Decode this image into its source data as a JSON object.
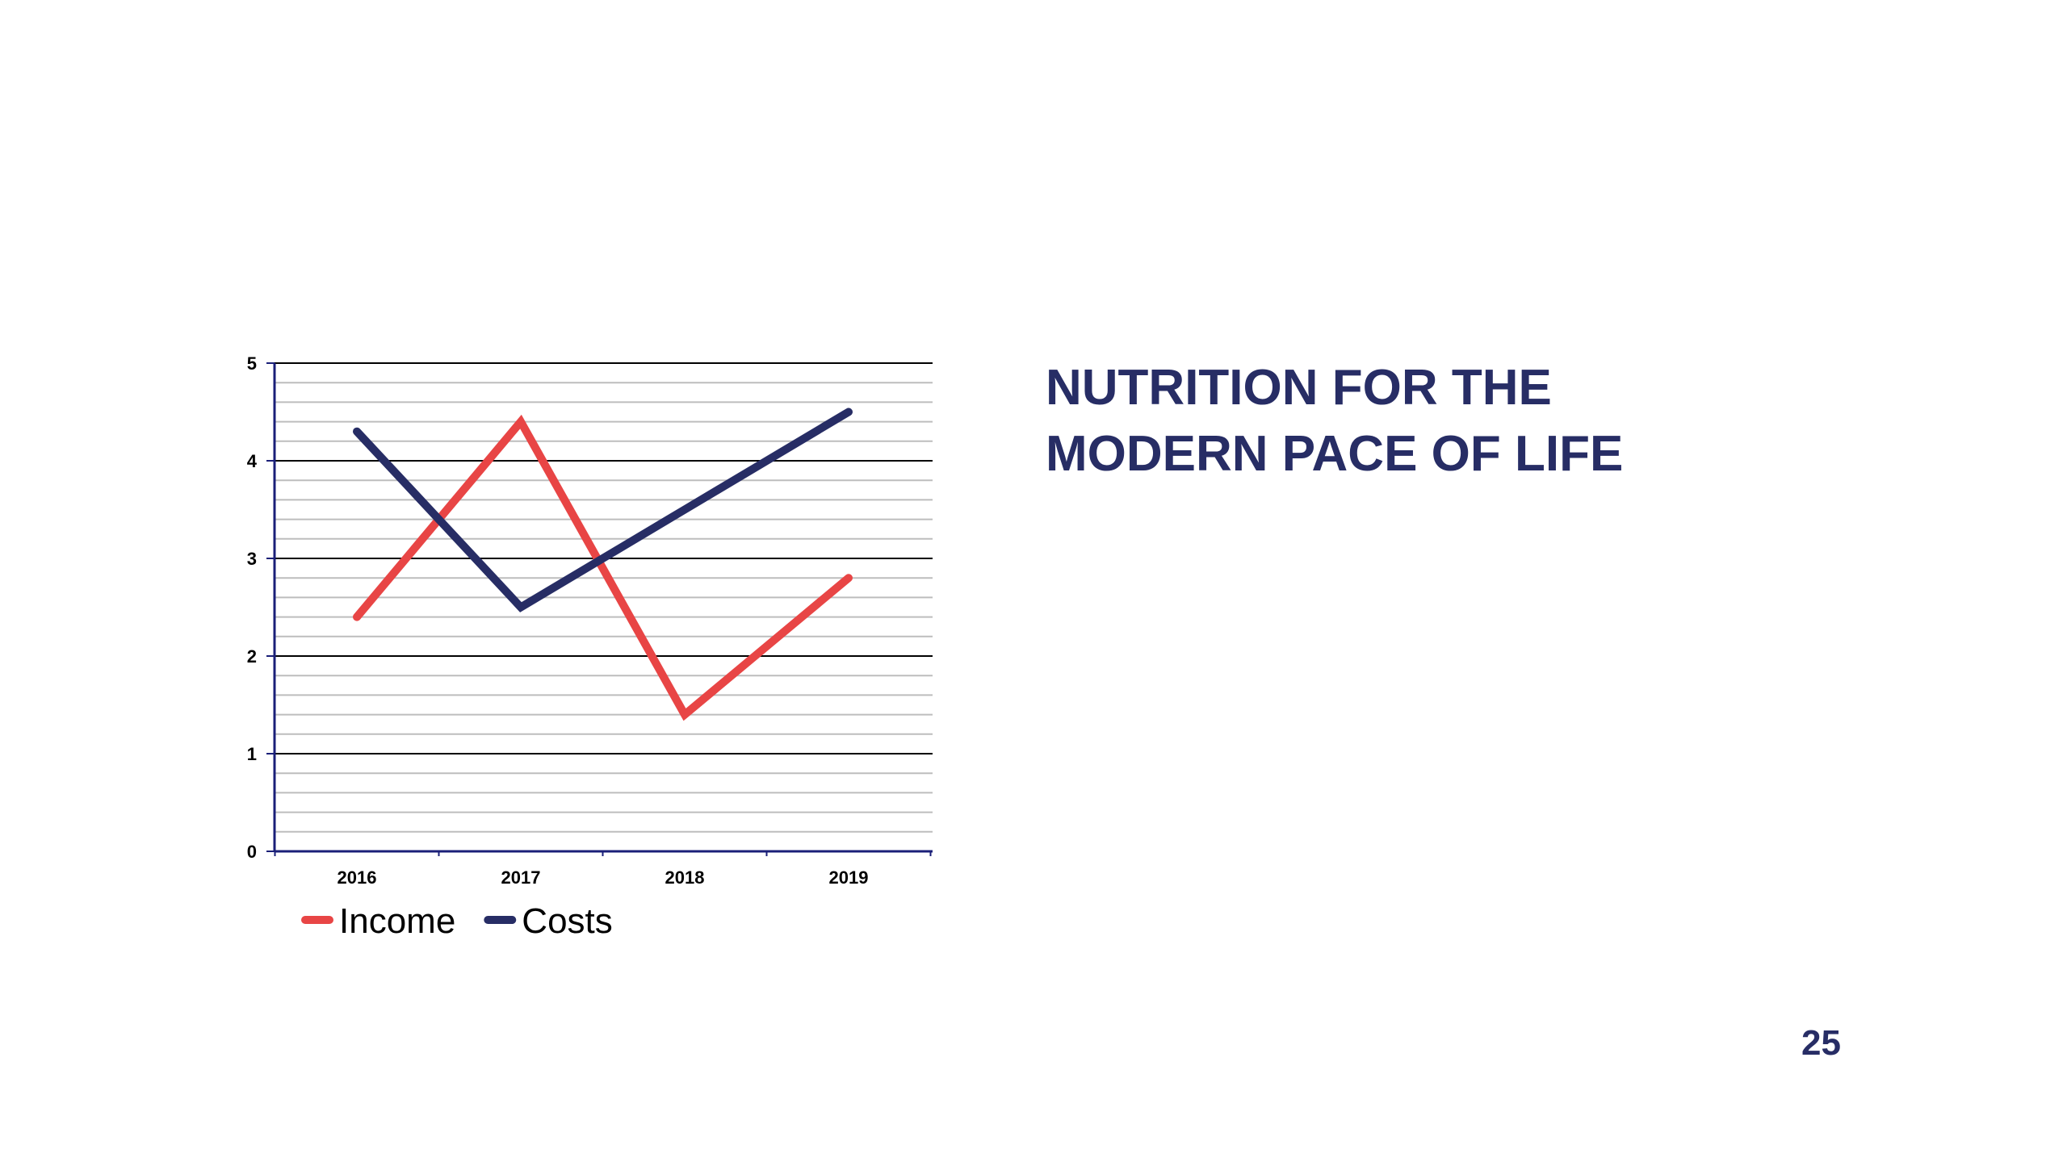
{
  "slide": {
    "title_line1": "NUTRITION FOR THE",
    "title_line2": "MODERN PACE OF LIFE",
    "page_number": "25",
    "title_color": "#272d65"
  },
  "chart_data": {
    "type": "line",
    "categories": [
      "2016",
      "2017",
      "2018",
      "2019"
    ],
    "series": [
      {
        "name": "Income",
        "values": [
          2.4,
          4.4,
          1.4,
          2.8
        ],
        "color": "#e84545"
      },
      {
        "name": "Costs",
        "values": [
          4.3,
          2.5,
          3.5,
          4.5
        ],
        "color": "#272d65"
      }
    ],
    "ylim": [
      0,
      5
    ],
    "yticks": [
      "0",
      "1",
      "2",
      "3",
      "4",
      "5"
    ],
    "minor_gridlines_per_unit": 5,
    "grid": true,
    "legend": "bottom-left",
    "axis_color": "#1a1f78",
    "major_grid_color": "#000000",
    "minor_grid_color": "#bdbdbd"
  }
}
